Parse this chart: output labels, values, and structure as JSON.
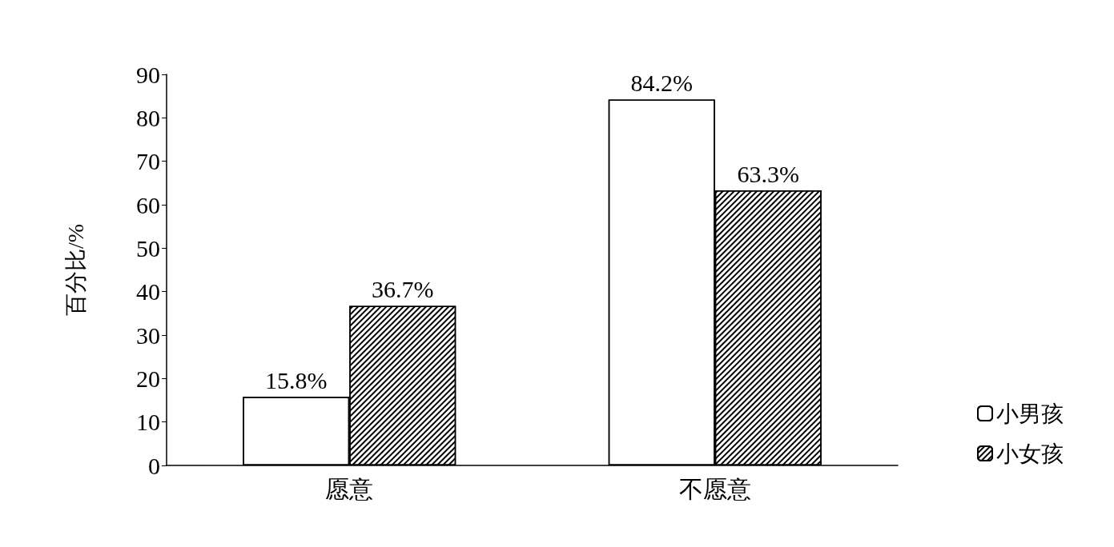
{
  "chart_data": {
    "type": "bar",
    "ylabel": "百分比/%",
    "categories": [
      "愿意",
      "不愿意"
    ],
    "series": [
      {
        "name": "小男孩",
        "color": "#ffffff",
        "values": [
          15.8,
          84.2
        ],
        "value_labels": [
          "15.8%",
          "84.2%"
        ]
      },
      {
        "name": "小女孩",
        "color": "#ffffff",
        "values": [
          36.7,
          63.3
        ],
        "value_labels": [
          "36.7%",
          "63.3%"
        ]
      }
    ],
    "ylim": [
      0,
      90
    ],
    "yticks": [
      0,
      10,
      20,
      30,
      40,
      50,
      60,
      70,
      80,
      90
    ],
    "grid": false,
    "legend": "bottom right"
  }
}
